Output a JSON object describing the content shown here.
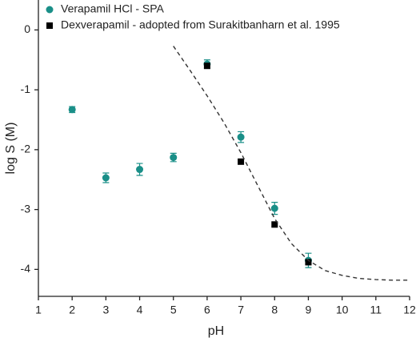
{
  "chart_data": {
    "type": "scatter",
    "xlabel": "pH",
    "ylabel": "log S (M)",
    "xlim": [
      1,
      12
    ],
    "xticks": [
      1,
      2,
      3,
      4,
      5,
      6,
      7,
      8,
      9,
      10,
      11,
      12
    ],
    "ylim": [
      -4.45,
      0.5
    ],
    "yticks": [
      0,
      -1,
      -2,
      -3,
      -4
    ],
    "legend": "upper left",
    "series": [
      {
        "name": "Verapamil HCl - SPA",
        "color": "#1a8f88",
        "marker": "circle",
        "x": [
          2,
          3,
          4,
          5,
          6,
          7,
          8,
          9
        ],
        "values": [
          -1.33,
          -2.47,
          -2.33,
          -2.13,
          -0.57,
          -1.79,
          -2.98,
          -3.85
        ],
        "errors": [
          0.05,
          0.08,
          0.1,
          0.07,
          0.07,
          0.09,
          0.1,
          0.12
        ]
      },
      {
        "name": "Dexverapamil - adopted from Surakitbanharn et al. 1995",
        "color": "#000000",
        "marker": "square",
        "x": [
          6,
          7,
          8,
          9
        ],
        "values": [
          -0.6,
          -2.2,
          -3.25,
          -3.88
        ]
      },
      {
        "type": "line",
        "color": "#333333",
        "dashed": true,
        "x": [
          5,
          5.5,
          6,
          6.5,
          7,
          7.5,
          8,
          8.5,
          9,
          9.5,
          10,
          10.5,
          11,
          11.5,
          12
        ],
        "values": [
          -0.27,
          -0.68,
          -1.1,
          -1.55,
          -2.05,
          -2.6,
          -3.15,
          -3.57,
          -3.85,
          -4.02,
          -4.1,
          -4.15,
          -4.17,
          -4.18,
          -4.18
        ]
      }
    ]
  }
}
